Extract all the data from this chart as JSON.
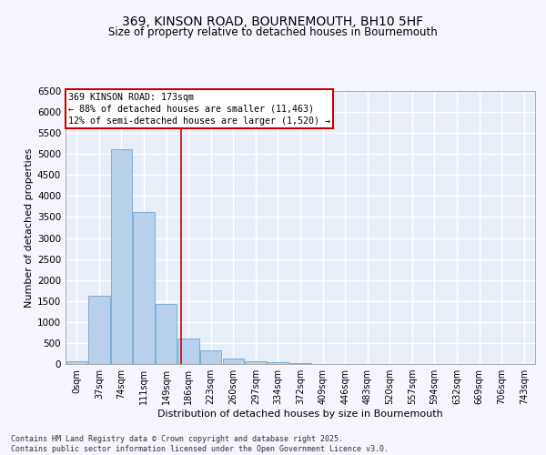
{
  "title": "369, KINSON ROAD, BOURNEMOUTH, BH10 5HF",
  "subtitle": "Size of property relative to detached houses in Bournemouth",
  "xlabel": "Distribution of detached houses by size in Bournemouth",
  "ylabel": "Number of detached properties",
  "bar_color": "#b8d0ea",
  "bar_edge_color": "#7aafd4",
  "background_color": "#e8eef8",
  "grid_color": "#ffffff",
  "bins": [
    "0sqm",
    "37sqm",
    "74sqm",
    "111sqm",
    "149sqm",
    "186sqm",
    "223sqm",
    "260sqm",
    "297sqm",
    "334sqm",
    "372sqm",
    "409sqm",
    "446sqm",
    "483sqm",
    "520sqm",
    "557sqm",
    "594sqm",
    "632sqm",
    "669sqm",
    "706sqm",
    "743sqm"
  ],
  "values": [
    65,
    1630,
    5120,
    3620,
    1420,
    610,
    315,
    140,
    75,
    45,
    15,
    0,
    0,
    0,
    0,
    0,
    0,
    0,
    0,
    0,
    0
  ],
  "ylim": [
    0,
    6500
  ],
  "yticks": [
    0,
    500,
    1000,
    1500,
    2000,
    2500,
    3000,
    3500,
    4000,
    4500,
    5000,
    5500,
    6000,
    6500
  ],
  "vline_x": 4.67,
  "vline_color": "#cc0000",
  "annotation_text": "369 KINSON ROAD: 173sqm\n← 88% of detached houses are smaller (11,463)\n12% of semi-detached houses are larger (1,520) →",
  "annotation_border_color": "#cc0000",
  "footnote": "Contains HM Land Registry data © Crown copyright and database right 2025.\nContains public sector information licensed under the Open Government Licence v3.0.",
  "fig_bg": "#f5f5ff"
}
